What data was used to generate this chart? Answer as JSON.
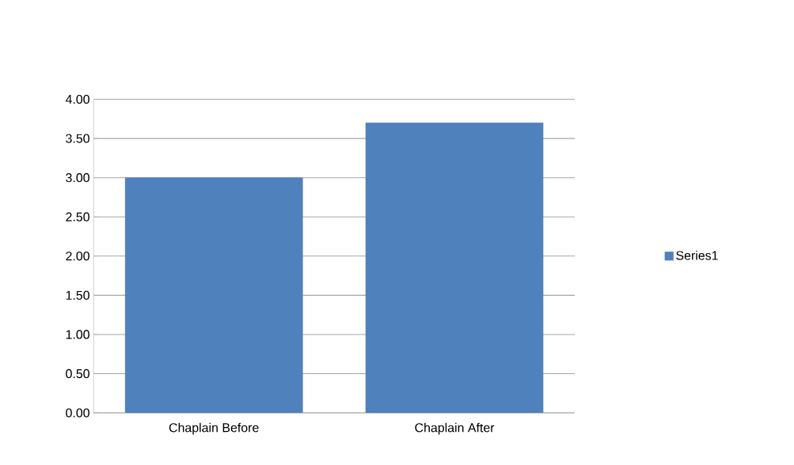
{
  "chart_data": {
    "type": "bar",
    "categories": [
      "Chaplain Before",
      "Chaplain After"
    ],
    "series": [
      {
        "name": "Series1",
        "color": "#4f81bd",
        "values": [
          3.0,
          3.7
        ]
      }
    ],
    "ylim": [
      0,
      4
    ],
    "yticks": [
      {
        "value": 0,
        "label": "0.00"
      },
      {
        "value": 0.5,
        "label": "0.50"
      },
      {
        "value": 1,
        "label": "1.00"
      },
      {
        "value": 1.5,
        "label": "1.50"
      },
      {
        "value": 2,
        "label": "2.00"
      },
      {
        "value": 2.5,
        "label": "2.50"
      },
      {
        "value": 3,
        "label": "3.00"
      },
      {
        "value": 3.5,
        "label": "3.50"
      },
      {
        "value": 4,
        "label": "4.00"
      }
    ],
    "grid": "y",
    "legend": "right"
  }
}
